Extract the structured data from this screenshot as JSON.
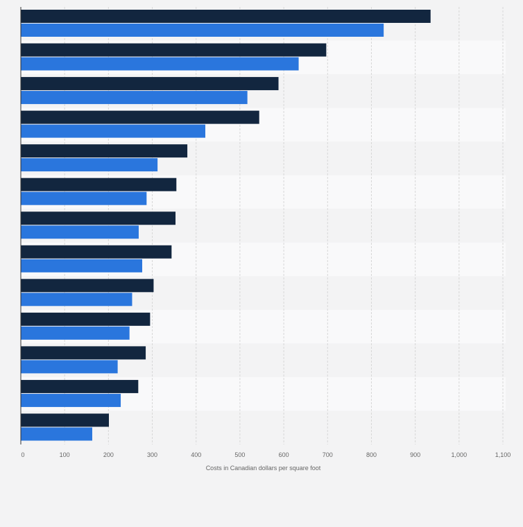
{
  "chart_data": {
    "type": "bar",
    "orientation": "horizontal",
    "title": "",
    "xlabel": "Costs in Canadian dollars per square foot",
    "ylabel": "",
    "xlim": [
      0,
      1100
    ],
    "x_ticks": [
      0,
      100,
      200,
      300,
      400,
      500,
      600,
      700,
      800,
      900,
      1000,
      1100
    ],
    "x_tick_labels": [
      "0",
      "100",
      "200",
      "300",
      "400",
      "500",
      "600",
      "700",
      "800",
      "900",
      "1,000",
      "1,100"
    ],
    "categories": [
      "",
      "",
      "",
      "",
      "",
      "",
      "",
      "",
      "",
      "",
      "",
      "",
      ""
    ],
    "grid": true,
    "legend": "none",
    "series": [
      {
        "color": "#12263f",
        "values": [
          935,
          697,
          588,
          544,
          380,
          355,
          353,
          344,
          303,
          295,
          285,
          268,
          201
        ]
      },
      {
        "color": "#2a76dd",
        "values": [
          828,
          634,
          517,
          421,
          312,
          287,
          269,
          277,
          254,
          248,
          221,
          228,
          163
        ]
      }
    ]
  }
}
